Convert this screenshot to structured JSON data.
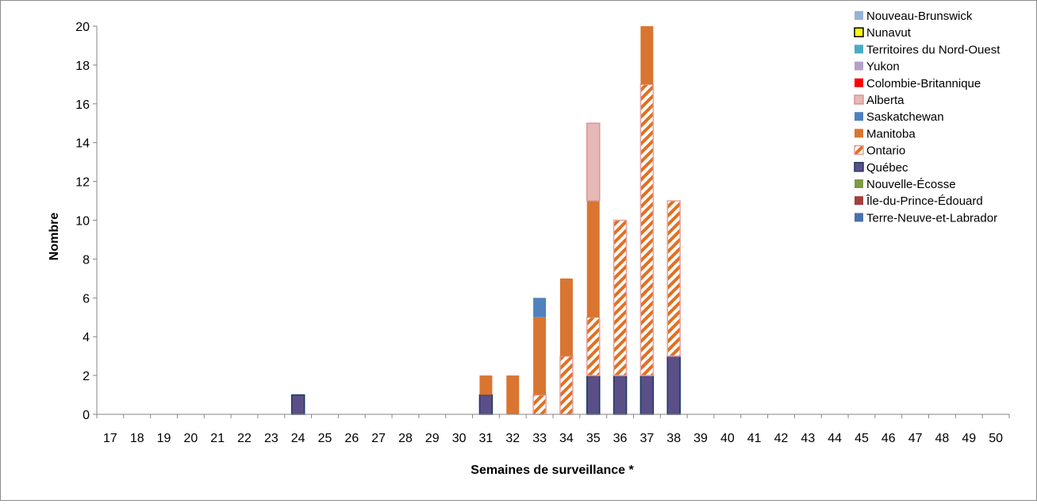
{
  "chart_data": {
    "type": "bar",
    "stacked": true,
    "title": "",
    "xlabel": "Semaines de surveillance *",
    "ylabel": "Nombre",
    "ylim": [
      0,
      20
    ],
    "yticks": [
      0,
      2,
      4,
      6,
      8,
      10,
      12,
      14,
      16,
      18,
      20
    ],
    "grid": false,
    "legend_position": "top-right",
    "categories": [
      "17",
      "18",
      "19",
      "20",
      "21",
      "22",
      "23",
      "24",
      "25",
      "26",
      "27",
      "28",
      "29",
      "30",
      "31",
      "32",
      "33",
      "34",
      "35",
      "36",
      "37",
      "38",
      "39",
      "40",
      "41",
      "42",
      "43",
      "44",
      "45",
      "46",
      "47",
      "48",
      "49",
      "50"
    ],
    "series": [
      {
        "name": "Terre-Neuve-et-Labrador",
        "color": "#4a72a8",
        "pattern": "solid",
        "values": [
          0,
          0,
          0,
          0,
          0,
          0,
          0,
          0,
          0,
          0,
          0,
          0,
          0,
          0,
          0,
          0,
          0,
          0,
          0,
          0,
          0,
          0,
          0,
          0,
          0,
          0,
          0,
          0,
          0,
          0,
          0,
          0,
          0,
          0
        ]
      },
      {
        "name": "Île-du-Prince-Édouard",
        "color": "#a5403d",
        "pattern": "solid",
        "values": [
          0,
          0,
          0,
          0,
          0,
          0,
          0,
          0,
          0,
          0,
          0,
          0,
          0,
          0,
          0,
          0,
          0,
          0,
          0,
          0,
          0,
          0,
          0,
          0,
          0,
          0,
          0,
          0,
          0,
          0,
          0,
          0,
          0,
          0
        ]
      },
      {
        "name": "Nouvelle-Écosse",
        "color": "#7f9a48",
        "pattern": "solid",
        "values": [
          0,
          0,
          0,
          0,
          0,
          0,
          0,
          0,
          0,
          0,
          0,
          0,
          0,
          0,
          0,
          0,
          0,
          0,
          0,
          0,
          0,
          0,
          0,
          0,
          0,
          0,
          0,
          0,
          0,
          0,
          0,
          0,
          0,
          0
        ]
      },
      {
        "name": "Québec",
        "color": "#5a4f87",
        "border": "#1f3864",
        "pattern": "solid",
        "values": [
          0,
          0,
          0,
          0,
          0,
          0,
          0,
          1,
          0,
          0,
          0,
          0,
          0,
          0,
          1,
          0,
          0,
          0,
          2,
          2,
          2,
          3,
          0,
          0,
          0,
          0,
          0,
          0,
          0,
          0,
          0,
          0,
          0,
          0
        ]
      },
      {
        "name": "Ontario",
        "color": "#e07020",
        "border": "#e8a0a0",
        "pattern": "hatch",
        "values": [
          0,
          0,
          0,
          0,
          0,
          0,
          0,
          0,
          0,
          0,
          0,
          0,
          0,
          0,
          0,
          0,
          1,
          3,
          3,
          8,
          15,
          8,
          0,
          0,
          0,
          0,
          0,
          0,
          0,
          0,
          0,
          0,
          0,
          0
        ]
      },
      {
        "name": "Manitoba",
        "color": "#d97530",
        "pattern": "solid",
        "values": [
          0,
          0,
          0,
          0,
          0,
          0,
          0,
          0,
          0,
          0,
          0,
          0,
          0,
          0,
          1,
          2,
          4,
          4,
          6,
          0,
          3,
          0,
          0,
          0,
          0,
          0,
          0,
          0,
          0,
          0,
          0,
          0,
          0,
          0
        ]
      },
      {
        "name": "Saskatchewan",
        "color": "#4f81bd",
        "pattern": "solid",
        "values": [
          0,
          0,
          0,
          0,
          0,
          0,
          0,
          0,
          0,
          0,
          0,
          0,
          0,
          0,
          0,
          0,
          1,
          0,
          0,
          0,
          0,
          0,
          0,
          0,
          0,
          0,
          0,
          0,
          0,
          0,
          0,
          0,
          0,
          0
        ]
      },
      {
        "name": "Alberta",
        "color": "#e6b8b7",
        "border": "#d99694",
        "pattern": "solid",
        "values": [
          0,
          0,
          0,
          0,
          0,
          0,
          0,
          0,
          0,
          0,
          0,
          0,
          0,
          0,
          0,
          0,
          0,
          0,
          4,
          0,
          0,
          0,
          0,
          0,
          0,
          0,
          0,
          0,
          0,
          0,
          0,
          0,
          0,
          0
        ]
      },
      {
        "name": "Colombie-Britannique",
        "color": "#ff0000",
        "pattern": "solid",
        "values": [
          0,
          0,
          0,
          0,
          0,
          0,
          0,
          0,
          0,
          0,
          0,
          0,
          0,
          0,
          0,
          0,
          0,
          0,
          0,
          0,
          0,
          0,
          0,
          0,
          0,
          0,
          0,
          0,
          0,
          0,
          0,
          0,
          0,
          0
        ]
      },
      {
        "name": "Yukon",
        "color": "#b2a2c7",
        "pattern": "solid",
        "values": [
          0,
          0,
          0,
          0,
          0,
          0,
          0,
          0,
          0,
          0,
          0,
          0,
          0,
          0,
          0,
          0,
          0,
          0,
          0,
          0,
          0,
          0,
          0,
          0,
          0,
          0,
          0,
          0,
          0,
          0,
          0,
          0,
          0,
          0
        ]
      },
      {
        "name": "Territoires du Nord-Ouest",
        "color": "#4bacc6",
        "pattern": "solid",
        "values": [
          0,
          0,
          0,
          0,
          0,
          0,
          0,
          0,
          0,
          0,
          0,
          0,
          0,
          0,
          0,
          0,
          0,
          0,
          0,
          0,
          0,
          0,
          0,
          0,
          0,
          0,
          0,
          0,
          0,
          0,
          0,
          0,
          0,
          0
        ]
      },
      {
        "name": "Nunavut",
        "color": "#ffff00",
        "border": "#000000",
        "pattern": "solid",
        "values": [
          0,
          0,
          0,
          0,
          0,
          0,
          0,
          0,
          0,
          0,
          0,
          0,
          0,
          0,
          0,
          0,
          0,
          0,
          0,
          0,
          0,
          0,
          0,
          0,
          0,
          0,
          0,
          0,
          0,
          0,
          0,
          0,
          0,
          0
        ]
      },
      {
        "name": "Nouveau-Brunswick",
        "color": "#95b3d7",
        "pattern": "solid",
        "values": [
          0,
          0,
          0,
          0,
          0,
          0,
          0,
          0,
          0,
          0,
          0,
          0,
          0,
          0,
          0,
          0,
          0,
          0,
          0,
          0,
          0,
          0,
          0,
          0,
          0,
          0,
          0,
          0,
          0,
          0,
          0,
          0,
          0,
          0
        ]
      }
    ]
  }
}
